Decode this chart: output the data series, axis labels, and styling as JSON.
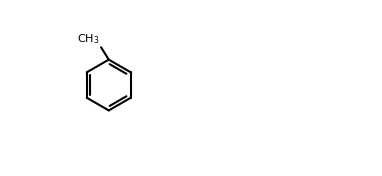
{
  "bg": "#ffffff",
  "bond_lw": 1.5,
  "bond_color": "#000000",
  "font_size": 8,
  "fig_w": 3.82,
  "fig_h": 1.76,
  "dpi": 100
}
